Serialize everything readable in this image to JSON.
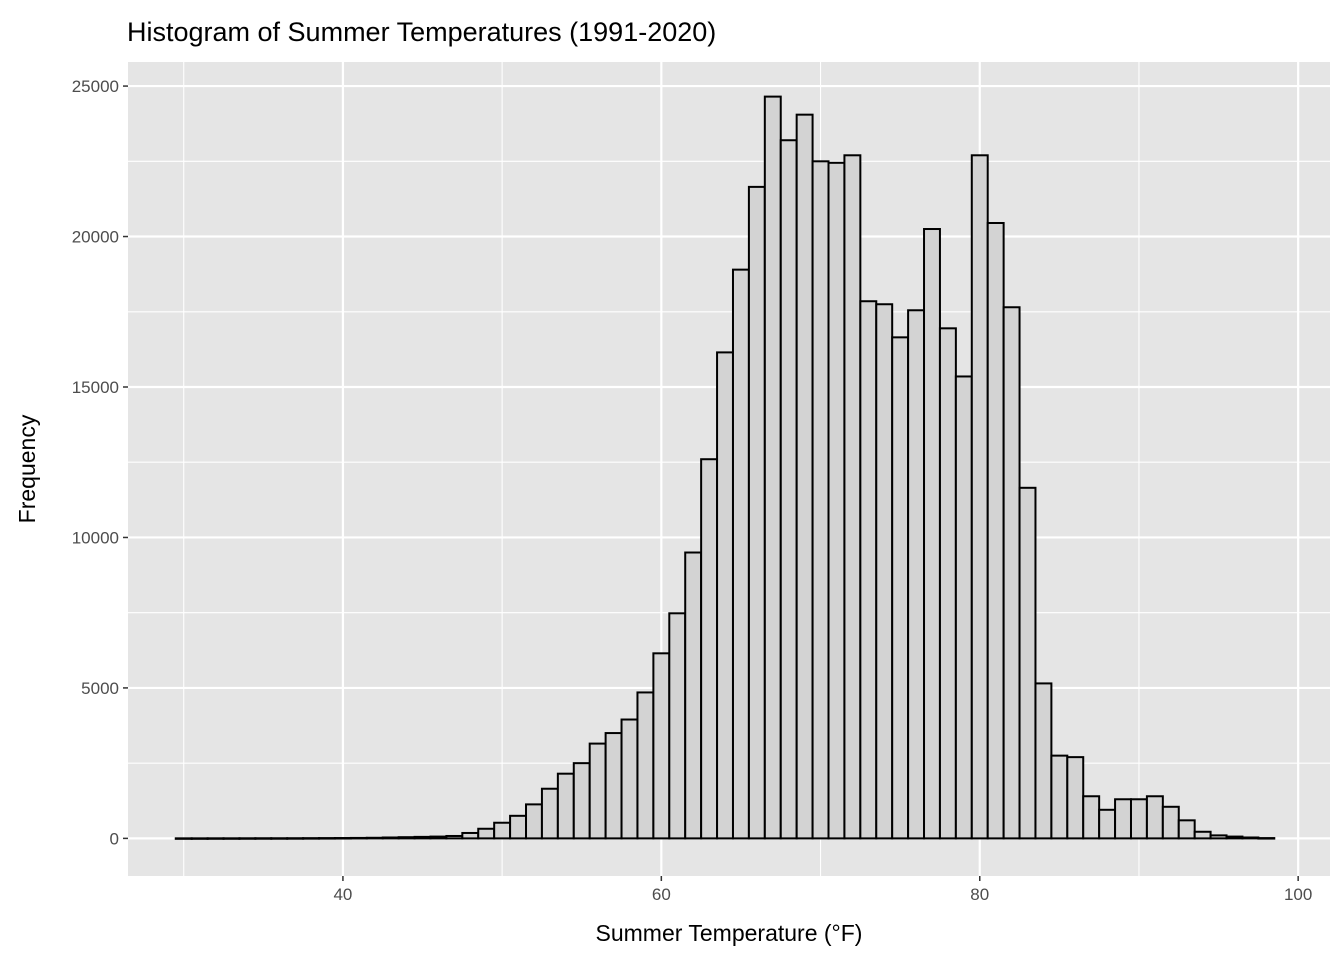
{
  "chart_data": {
    "type": "bar",
    "title": "Histogram of Summer Temperatures (1991-2020)",
    "xlabel": "Summer Temperature (°F)",
    "ylabel": "Frequency",
    "xlim": [
      26.5,
      102
    ],
    "ylim": [
      -1250,
      25800
    ],
    "x_ticks": [
      40,
      60,
      80,
      100
    ],
    "y_ticks": [
      0,
      5000,
      10000,
      15000,
      20000,
      25000
    ],
    "x_tick_labels": [
      "40",
      "60",
      "80",
      "100"
    ],
    "y_tick_labels": [
      "0",
      "5000",
      "10000",
      "15000",
      "20000",
      "25000"
    ],
    "grid": true,
    "bin_width": 1,
    "bin_centers": [
      30,
      31,
      32,
      33,
      34,
      35,
      36,
      37,
      38,
      39,
      40,
      41,
      42,
      43,
      44,
      45,
      46,
      47,
      48,
      49,
      50,
      51,
      52,
      53,
      54,
      55,
      56,
      57,
      58,
      59,
      60,
      61,
      62,
      63,
      64,
      65,
      66,
      67,
      68,
      69,
      70,
      71,
      72,
      73,
      74,
      75,
      76,
      77,
      78,
      79,
      80,
      81,
      82,
      83,
      84,
      85,
      86,
      87,
      88,
      89,
      90,
      91,
      92,
      93,
      94,
      95,
      96,
      97,
      98
    ],
    "values": [
      2,
      2,
      3,
      3,
      4,
      5,
      5,
      6,
      8,
      10,
      12,
      15,
      20,
      30,
      40,
      50,
      60,
      80,
      180,
      320,
      520,
      750,
      1130,
      1650,
      2150,
      2500,
      3150,
      3500,
      3950,
      4850,
      6150,
      7480,
      9500,
      12600,
      16150,
      18900,
      21650,
      24650,
      23200,
      24050,
      22500,
      22450,
      22700,
      17850,
      17750,
      16650,
      17550,
      20250,
      16950,
      15350,
      22700,
      20450,
      17650,
      11650,
      5150,
      2750,
      2700,
      1400,
      950,
      1300,
      1300,
      1400,
      1050,
      600,
      220,
      100,
      60,
      30,
      10
    ],
    "colors": {
      "panel": "#e5e5e5",
      "grid": "#ffffff",
      "bar_fill": "#d3d3d3",
      "bar_outline": "#000000",
      "text": "#4d4d4d"
    }
  }
}
